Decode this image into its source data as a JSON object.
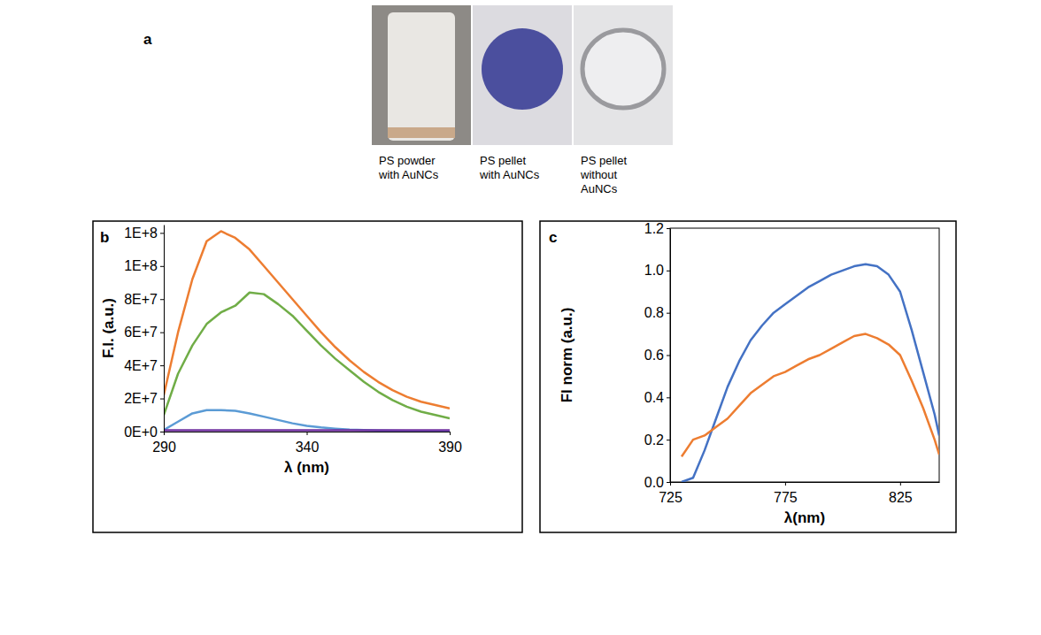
{
  "panel_a": {
    "panel_label": "a",
    "captions": [
      "PS powder with AuNCs",
      "PS pellet with AuNCs",
      "PS pellet without AuNCs"
    ]
  },
  "chart_data": [
    {
      "type": "line",
      "panel_label": "b",
      "x_label": "λ (nm)",
      "y_label": "F.I. (a.u.)",
      "grid": false,
      "x": [
        290,
        295,
        300,
        305,
        310,
        315,
        320,
        325,
        330,
        335,
        340,
        345,
        350,
        355,
        360,
        365,
        370,
        375,
        380,
        385,
        390
      ],
      "xlim": [
        290,
        390
      ],
      "xticks": [
        290,
        340,
        390
      ],
      "ylim": [
        0,
        125000000
      ],
      "yticks": [
        {
          "value": 0,
          "label": "0E+0"
        },
        {
          "value": 20000000,
          "label": "2E+7"
        },
        {
          "value": 40000000,
          "label": "4E+7"
        },
        {
          "value": 60000000,
          "label": "6E+7"
        },
        {
          "value": 80000000,
          "label": "8E+7"
        },
        {
          "value": 100000000,
          "label": "1E+8"
        },
        {
          "value": 120000000,
          "label": "1E+8"
        }
      ],
      "series": [
        {
          "color": "#ED7D31",
          "values": [
            22000000,
            60000000,
            92000000,
            115000000,
            121000000,
            117000000,
            110000000,
            100000000,
            90000000,
            80000000,
            70000000,
            60000000,
            51000000,
            43000000,
            36000000,
            30000000,
            25000000,
            21000000,
            18000000,
            16000000,
            14000000
          ]
        },
        {
          "color": "#70AD47",
          "values": [
            10000000,
            35000000,
            52000000,
            65000000,
            72000000,
            76000000,
            84000000,
            83000000,
            77000000,
            70000000,
            61000000,
            52000000,
            44000000,
            37000000,
            30000000,
            24000000,
            19000000,
            15000000,
            12000000,
            10000000,
            8000000
          ]
        },
        {
          "color": "#5B9BD5",
          "values": [
            1000000,
            6000000,
            11000000,
            13000000,
            13000000,
            12500000,
            11000000,
            9000000,
            7000000,
            5000000,
            3500000,
            2500000,
            1800000,
            1200000,
            900000,
            700000,
            500000,
            400000,
            300000,
            300000,
            300000
          ]
        },
        {
          "color": "#7030A0",
          "values": [
            800000,
            800000,
            800000,
            800000,
            800000,
            800000,
            800000,
            800000,
            800000,
            800000,
            800000,
            800000,
            800000,
            800000,
            800000,
            800000,
            800000,
            800000,
            800000,
            800000,
            800000
          ]
        }
      ]
    },
    {
      "type": "line",
      "panel_label": "c",
      "x_label": "λ(nm)",
      "y_label": "FI norm (a.u.)",
      "grid": false,
      "x": [
        730,
        735,
        740,
        745,
        750,
        755,
        760,
        765,
        770,
        775,
        780,
        785,
        790,
        795,
        800,
        805,
        810,
        815,
        820,
        825,
        830,
        835,
        840,
        842
      ],
      "xlim": [
        725,
        842
      ],
      "xticks": [
        725,
        775,
        825
      ],
      "ylim": [
        0,
        1.2
      ],
      "yticks": [
        {
          "value": 0,
          "label": "0.0"
        },
        0.2,
        0.4,
        0.6,
        0.8,
        {
          "value": 1,
          "label": "1.0"
        },
        1.2
      ],
      "series": [
        {
          "color": "#4472C4",
          "values": [
            0.0,
            0.02,
            0.15,
            0.3,
            0.45,
            0.57,
            0.67,
            0.74,
            0.8,
            0.84,
            0.88,
            0.92,
            0.95,
            0.98,
            1.0,
            1.02,
            1.03,
            1.02,
            0.98,
            0.9,
            0.72,
            0.52,
            0.32,
            0.22
          ]
        },
        {
          "color": "#ED7D31",
          "values": [
            0.12,
            0.2,
            0.22,
            0.26,
            0.3,
            0.36,
            0.42,
            0.46,
            0.5,
            0.52,
            0.55,
            0.58,
            0.6,
            0.63,
            0.66,
            0.69,
            0.7,
            0.68,
            0.65,
            0.6,
            0.48,
            0.35,
            0.2,
            0.13
          ]
        }
      ]
    }
  ]
}
